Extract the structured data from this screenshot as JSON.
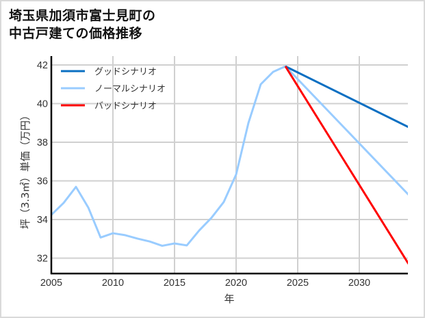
{
  "title_line1": "埼玉県加須市富士見町の",
  "title_line2": "中古戸建ての価格推移",
  "chart_data": {
    "type": "line",
    "title": "埼玉県加須市富士見町の中古戸建ての価格推移",
    "xlabel": "年",
    "ylabel": "坪（3.3㎡）単価（万円）",
    "xlim": [
      2005,
      2034
    ],
    "ylim": [
      31.2,
      42.1
    ],
    "xticks": [
      2005,
      2010,
      2015,
      2020,
      2025,
      2030
    ],
    "yticks": [
      32,
      34,
      36,
      38,
      40,
      42
    ],
    "grid": true,
    "legend_position": "upper left",
    "series": [
      {
        "name": "グッドシナリオ",
        "color": "#0a6fc2",
        "x": [
          2024,
          2034
        ],
        "values": [
          41.93,
          38.78
        ]
      },
      {
        "name": "ノーマルシナリオ",
        "color": "#99ccff",
        "x": [
          2005,
          2006,
          2007,
          2008,
          2009,
          2010,
          2011,
          2012,
          2013,
          2014,
          2015,
          2016,
          2017,
          2018,
          2019,
          2020,
          2021,
          2022,
          2023,
          2024,
          2034
        ],
        "values": [
          34.24,
          34.86,
          35.69,
          34.62,
          33.07,
          33.29,
          33.19,
          33.01,
          32.86,
          32.64,
          32.76,
          32.66,
          33.43,
          34.09,
          34.91,
          36.33,
          39.0,
          41.0,
          41.64,
          41.93,
          35.28
        ]
      },
      {
        "name": "バッドシナリオ",
        "color": "#ff0000",
        "x": [
          2024,
          2034
        ],
        "values": [
          41.93,
          31.7
        ]
      }
    ]
  }
}
